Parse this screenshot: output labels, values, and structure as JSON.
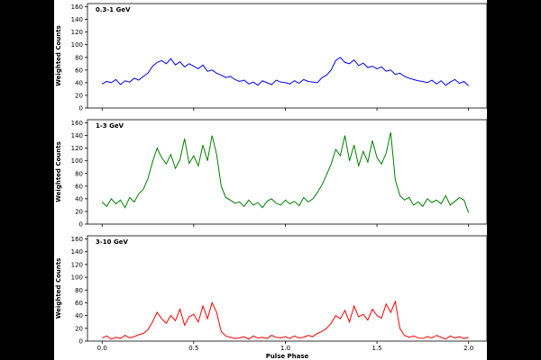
{
  "chart_data": [
    {
      "type": "line",
      "annotation": "0.3-1 GeV",
      "ylabel": "Weighted Counts",
      "x": [
        0,
        0.025,
        0.05,
        0.075,
        0.1,
        0.125,
        0.15,
        0.175,
        0.2,
        0.225,
        0.25,
        0.275,
        0.3,
        0.325,
        0.35,
        0.375,
        0.4,
        0.425,
        0.45,
        0.475,
        0.5,
        0.525,
        0.55,
        0.575,
        0.6,
        0.625,
        0.65,
        0.675,
        0.7,
        0.725,
        0.75,
        0.775,
        0.8,
        0.825,
        0.85,
        0.875,
        0.9,
        0.925,
        0.95,
        0.975,
        1,
        1.025,
        1.05,
        1.075,
        1.1,
        1.125,
        1.15,
        1.175,
        1.2,
        1.225,
        1.25,
        1.275,
        1.3,
        1.325,
        1.35,
        1.375,
        1.4,
        1.425,
        1.45,
        1.475,
        1.5,
        1.525,
        1.55,
        1.575,
        1.6,
        1.625,
        1.65,
        1.675,
        1.7,
        1.725,
        1.75,
        1.775,
        1.8,
        1.825,
        1.85,
        1.875,
        1.9,
        1.925,
        1.95,
        1.975,
        2
      ],
      "values": [
        38,
        42,
        40,
        45,
        37,
        43,
        41,
        47,
        44,
        50,
        55,
        66,
        72,
        75,
        70,
        78,
        68,
        73,
        65,
        70,
        66,
        62,
        68,
        58,
        60,
        55,
        52,
        48,
        50,
        45,
        42,
        44,
        38,
        41,
        36,
        43,
        40,
        37,
        44,
        41,
        40,
        38,
        43,
        39,
        45,
        42,
        41,
        40,
        48,
        52,
        60,
        75,
        80,
        72,
        70,
        76,
        67,
        71,
        64,
        66,
        62,
        65,
        58,
        60,
        53,
        55,
        50,
        47,
        45,
        43,
        42,
        40,
        44,
        38,
        43,
        36,
        41,
        45,
        39,
        42,
        35
      ],
      "color": "#0000ff",
      "ylim": [
        0,
        165
      ],
      "yticks": [
        0,
        20,
        40,
        60,
        80,
        100,
        120,
        140,
        160
      ],
      "xlim": [
        -0.08,
        2.1
      ],
      "xticks": [
        0,
        0.5,
        1,
        1.5,
        2
      ]
    },
    {
      "type": "line",
      "annotation": "1-3 GeV",
      "ylabel": "Weighted Counts",
      "x": [
        0,
        0.025,
        0.05,
        0.075,
        0.1,
        0.125,
        0.15,
        0.175,
        0.2,
        0.225,
        0.25,
        0.275,
        0.3,
        0.325,
        0.35,
        0.375,
        0.4,
        0.425,
        0.45,
        0.475,
        0.5,
        0.525,
        0.55,
        0.575,
        0.6,
        0.625,
        0.65,
        0.675,
        0.7,
        0.725,
        0.75,
        0.775,
        0.8,
        0.825,
        0.85,
        0.875,
        0.9,
        0.925,
        0.95,
        0.975,
        1,
        1.025,
        1.05,
        1.075,
        1.1,
        1.125,
        1.15,
        1.175,
        1.2,
        1.225,
        1.25,
        1.275,
        1.3,
        1.325,
        1.35,
        1.375,
        1.4,
        1.425,
        1.45,
        1.475,
        1.5,
        1.525,
        1.55,
        1.575,
        1.6,
        1.625,
        1.65,
        1.675,
        1.7,
        1.725,
        1.75,
        1.775,
        1.8,
        1.825,
        1.85,
        1.875,
        1.9,
        1.925,
        1.95,
        1.975,
        2
      ],
      "values": [
        35,
        28,
        40,
        32,
        38,
        26,
        42,
        35,
        48,
        55,
        72,
        98,
        120,
        105,
        95,
        110,
        88,
        102,
        135,
        96,
        108,
        92,
        125,
        100,
        140,
        110,
        60,
        42,
        38,
        33,
        35,
        28,
        38,
        30,
        34,
        26,
        36,
        40,
        33,
        30,
        38,
        32,
        36,
        29,
        42,
        35,
        40,
        50,
        62,
        78,
        95,
        118,
        108,
        140,
        100,
        125,
        92,
        115,
        98,
        132,
        105,
        95,
        112,
        145,
        70,
        45,
        38,
        42,
        30,
        35,
        28,
        40,
        34,
        38,
        32,
        45,
        30,
        36,
        42,
        38,
        18
      ],
      "color": "#008000",
      "ylim": [
        0,
        165
      ],
      "yticks": [
        0,
        20,
        40,
        60,
        80,
        100,
        120,
        140,
        160
      ],
      "xlim": [
        -0.08,
        2.1
      ],
      "xticks": [
        0,
        0.5,
        1,
        1.5,
        2
      ]
    },
    {
      "type": "line",
      "annotation": "3-10 GeV",
      "ylabel": "Weighted Counts",
      "xlabel": "Pulse Phase",
      "x": [
        0,
        0.025,
        0.05,
        0.075,
        0.1,
        0.125,
        0.15,
        0.175,
        0.2,
        0.225,
        0.25,
        0.275,
        0.3,
        0.325,
        0.35,
        0.375,
        0.4,
        0.425,
        0.45,
        0.475,
        0.5,
        0.525,
        0.55,
        0.575,
        0.6,
        0.625,
        0.65,
        0.675,
        0.7,
        0.725,
        0.75,
        0.775,
        0.8,
        0.825,
        0.85,
        0.875,
        0.9,
        0.925,
        0.95,
        0.975,
        1,
        1.025,
        1.05,
        1.075,
        1.1,
        1.125,
        1.15,
        1.175,
        1.2,
        1.225,
        1.25,
        1.275,
        1.3,
        1.325,
        1.35,
        1.375,
        1.4,
        1.425,
        1.45,
        1.475,
        1.5,
        1.525,
        1.55,
        1.575,
        1.6,
        1.625,
        1.65,
        1.675,
        1.7,
        1.725,
        1.75,
        1.775,
        1.8,
        1.825,
        1.85,
        1.875,
        1.9,
        1.925,
        1.95,
        1.975,
        2
      ],
      "values": [
        5,
        8,
        3,
        6,
        4,
        9,
        5,
        7,
        10,
        12,
        18,
        30,
        45,
        35,
        28,
        40,
        32,
        50,
        25,
        38,
        42,
        30,
        55,
        35,
        60,
        45,
        15,
        8,
        6,
        4,
        5,
        7,
        3,
        8,
        5,
        6,
        4,
        9,
        6,
        5,
        7,
        4,
        8,
        5,
        6,
        9,
        7,
        12,
        15,
        20,
        28,
        40,
        35,
        48,
        30,
        55,
        38,
        42,
        33,
        50,
        40,
        36,
        58,
        45,
        62,
        20,
        9,
        6,
        8,
        5,
        4,
        7,
        5,
        9,
        6,
        3,
        8,
        5,
        7,
        4,
        6
      ],
      "color": "#ff0000",
      "ylim": [
        0,
        165
      ],
      "yticks": [
        0,
        20,
        40,
        60,
        80,
        100,
        120,
        140,
        160
      ],
      "xlim": [
        -0.08,
        2.1
      ],
      "xticks": [
        {
          "value": 0,
          "label": "0.0"
        },
        0.5,
        {
          "value": 1,
          "label": "1.0"
        },
        1.5,
        {
          "value": 2,
          "label": "2.0"
        }
      ]
    }
  ]
}
